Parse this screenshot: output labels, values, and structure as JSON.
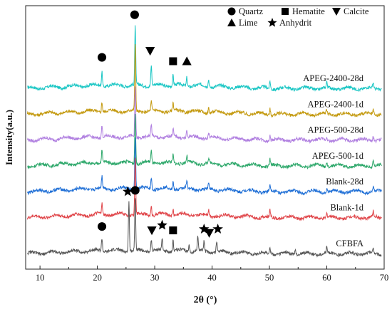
{
  "chart_data": {
    "type": "line",
    "title": "",
    "xlabel": "2θ (°)",
    "ylabel": "Intensity(a.u.)",
    "xlim": [
      7.5,
      70
    ],
    "x_ticks": [
      10,
      20,
      30,
      40,
      50,
      60,
      70
    ],
    "y_ticks_shown": false,
    "grid": false,
    "legend_position": "top-right",
    "legend": [
      {
        "symbol": "circle",
        "label": "Quartz"
      },
      {
        "symbol": "square",
        "label": "Hematite"
      },
      {
        "symbol": "triangle-down",
        "label": "Calcite"
      },
      {
        "symbol": "triangle-up",
        "label": "Lime"
      },
      {
        "symbol": "star",
        "label": "Anhydrit"
      }
    ],
    "series": [
      {
        "name": "APEG-2400-28d",
        "color": "#19c6c4",
        "baseline": 7.0,
        "peaks": [
          [
            20.8,
            0.55
          ],
          [
            26.6,
            2.3
          ],
          [
            29.4,
            0.8
          ],
          [
            33.2,
            0.4
          ],
          [
            35.6,
            0.35
          ],
          [
            39.4,
            0.3
          ],
          [
            50.1,
            0.3
          ],
          [
            60.0,
            0.2
          ],
          [
            68.1,
            0.2
          ]
        ]
      },
      {
        "name": "APEG-2400-1d",
        "color": "#c49a10",
        "baseline": 6.0,
        "peaks": [
          [
            20.8,
            0.4
          ],
          [
            26.6,
            2.6
          ],
          [
            29.4,
            0.35
          ],
          [
            33.2,
            0.3
          ],
          [
            39.4,
            0.2
          ],
          [
            50.1,
            0.25
          ],
          [
            60.0,
            0.15
          ],
          [
            68.1,
            0.2
          ]
        ]
      },
      {
        "name": "APEG-500-28d",
        "color": "#b07fe0",
        "baseline": 5.0,
        "peaks": [
          [
            20.8,
            0.45
          ],
          [
            26.6,
            2.0
          ],
          [
            29.4,
            0.45
          ],
          [
            33.2,
            0.3
          ],
          [
            35.6,
            0.25
          ],
          [
            39.4,
            0.2
          ],
          [
            50.1,
            0.25
          ],
          [
            60.0,
            0.15
          ],
          [
            68.1,
            0.2
          ]
        ]
      },
      {
        "name": "APEG-500-1d",
        "color": "#2ea86b",
        "baseline": 4.0,
        "peaks": [
          [
            20.8,
            0.45
          ],
          [
            26.6,
            2.0
          ],
          [
            29.4,
            0.45
          ],
          [
            33.2,
            0.3
          ],
          [
            35.6,
            0.25
          ],
          [
            39.4,
            0.2
          ],
          [
            50.1,
            0.25
          ],
          [
            60.0,
            0.15
          ],
          [
            68.1,
            0.2
          ]
        ]
      },
      {
        "name": "Blank-28d",
        "color": "#1f6fd6",
        "baseline": 3.0,
        "peaks": [
          [
            20.8,
            0.45
          ],
          [
            26.6,
            2.1
          ],
          [
            29.4,
            0.45
          ],
          [
            33.2,
            0.3
          ],
          [
            35.6,
            0.25
          ],
          [
            39.4,
            0.2
          ],
          [
            50.1,
            0.25
          ],
          [
            60.0,
            0.15
          ],
          [
            68.1,
            0.2
          ]
        ]
      },
      {
        "name": "Blank-1d",
        "color": "#e0464a",
        "baseline": 2.0,
        "peaks": [
          [
            20.8,
            0.4
          ],
          [
            26.6,
            2.3
          ],
          [
            29.4,
            0.35
          ],
          [
            33.2,
            0.25
          ],
          [
            39.4,
            0.2
          ],
          [
            50.1,
            0.25
          ],
          [
            60.0,
            0.15
          ],
          [
            68.1,
            0.2
          ]
        ]
      },
      {
        "name": "CFBFA",
        "color": "#555555",
        "baseline": 0.6,
        "peaks": [
          [
            20.8,
            0.5
          ],
          [
            25.5,
            2.0
          ],
          [
            26.6,
            2.1
          ],
          [
            29.4,
            0.45
          ],
          [
            31.3,
            0.45
          ],
          [
            33.2,
            0.4
          ],
          [
            36.0,
            0.25
          ],
          [
            37.5,
            0.6
          ],
          [
            38.6,
            0.35
          ],
          [
            40.8,
            0.4
          ],
          [
            50.1,
            0.25
          ],
          [
            54.5,
            0.2
          ],
          [
            60.0,
            0.2
          ],
          [
            68.1,
            0.2
          ]
        ]
      }
    ],
    "ylim": [
      0,
      10.2
    ],
    "phase_markers": [
      {
        "series": "APEG-2400-28d",
        "symbol": "circle",
        "x": 20.8,
        "y": 8.2
      },
      {
        "series": "APEG-2400-28d",
        "symbol": "circle",
        "x": 26.5,
        "y": 9.85
      },
      {
        "series": "APEG-2400-28d",
        "symbol": "triangle-down",
        "x": 29.2,
        "y": 8.45
      },
      {
        "series": "APEG-2400-28d",
        "symbol": "square",
        "x": 33.2,
        "y": 8.05
      },
      {
        "series": "APEG-2400-28d",
        "symbol": "triangle-up",
        "x": 35.6,
        "y": 8.05
      },
      {
        "series": "CFBFA",
        "symbol": "star",
        "x": 25.3,
        "y": 3.0
      },
      {
        "series": "CFBFA",
        "symbol": "circle",
        "x": 20.8,
        "y": 1.65
      },
      {
        "series": "CFBFA",
        "symbol": "circle",
        "x": 26.6,
        "y": 3.05
      },
      {
        "series": "CFBFA",
        "symbol": "triangle-down",
        "x": 29.5,
        "y": 1.5
      },
      {
        "series": "CFBFA",
        "symbol": "star",
        "x": 31.3,
        "y": 1.7
      },
      {
        "series": "CFBFA",
        "symbol": "square",
        "x": 33.2,
        "y": 1.5
      },
      {
        "series": "CFBFA",
        "symbol": "star",
        "x": 38.6,
        "y": 1.55
      },
      {
        "series": "CFBFA",
        "symbol": "triangle-down",
        "x": 39.5,
        "y": 1.4
      },
      {
        "series": "CFBFA",
        "symbol": "star",
        "x": 41.0,
        "y": 1.55
      }
    ]
  }
}
